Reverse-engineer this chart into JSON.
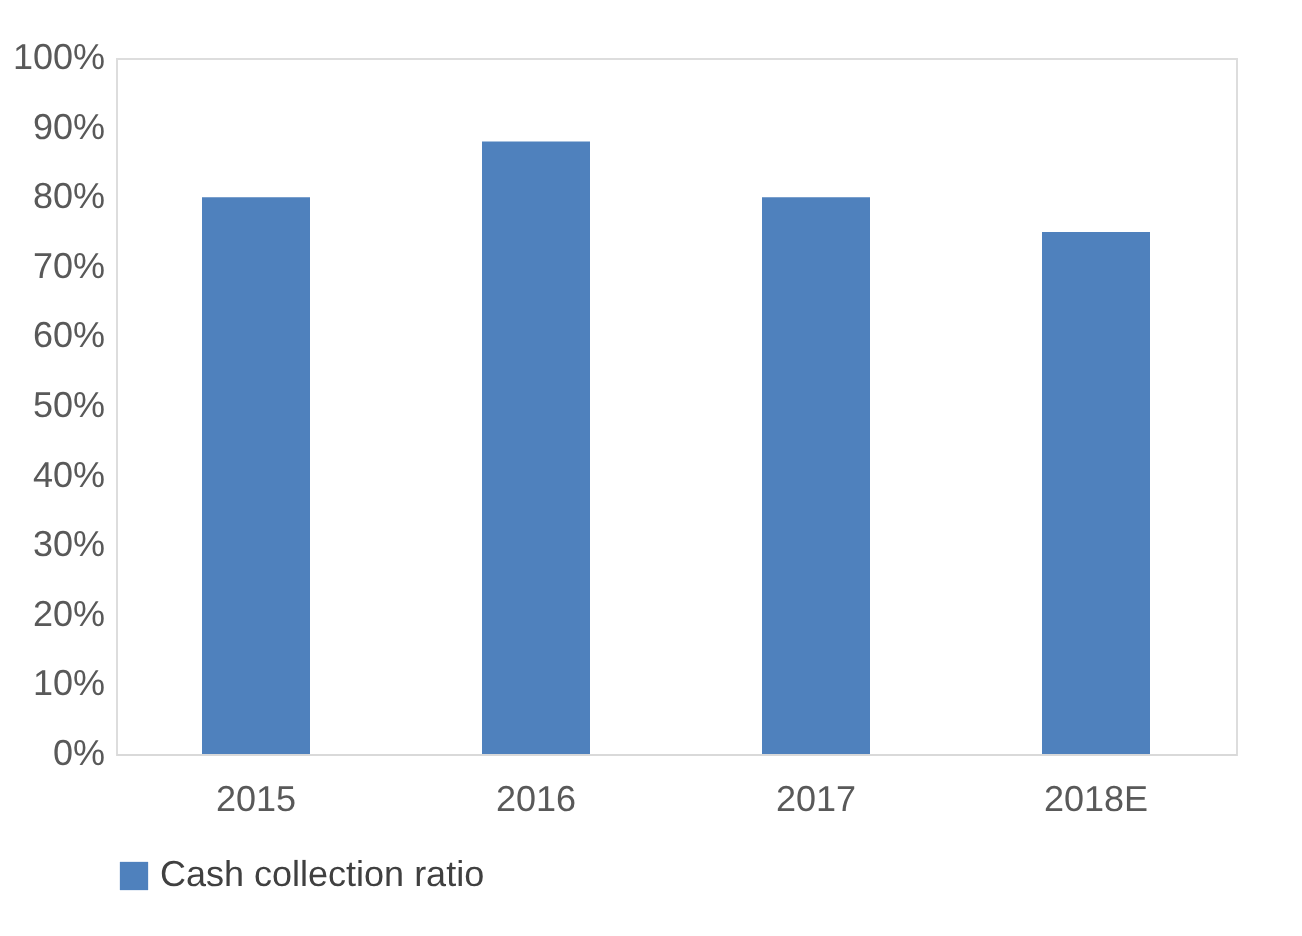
{
  "chart_data": {
    "type": "bar",
    "categories": [
      "2015",
      "2016",
      "2017",
      "2018E"
    ],
    "series": [
      {
        "name": "Cash collection ratio",
        "color": "#4f81bd",
        "values": [
          80,
          88,
          80,
          75
        ]
      }
    ],
    "ylim": [
      0,
      100
    ],
    "yticks": [
      {
        "value": 0,
        "label": "0%"
      },
      {
        "value": 10,
        "label": "10%"
      },
      {
        "value": 20,
        "label": "20%"
      },
      {
        "value": 30,
        "label": "30%"
      },
      {
        "value": 40,
        "label": "40%"
      },
      {
        "value": 50,
        "label": "50%"
      },
      {
        "value": 60,
        "label": "60%"
      },
      {
        "value": 70,
        "label": "70%"
      },
      {
        "value": 80,
        "label": "80%"
      },
      {
        "value": 90,
        "label": "90%"
      },
      {
        "value": 100,
        "label": "100%"
      }
    ],
    "grid": false,
    "legend": "bottom"
  }
}
